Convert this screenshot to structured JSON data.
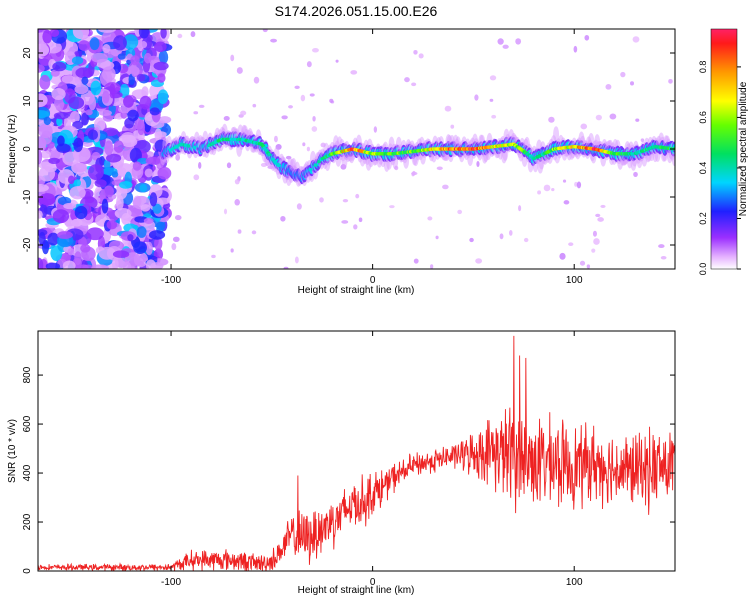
{
  "title": "S174.2026.051.15.00.E26",
  "colors": {
    "snr_line": "#ee2222",
    "axis": "#000000",
    "background": "#ffffff"
  },
  "chart_data": [
    {
      "type": "heatmap",
      "title": "S174.2026.051.15.00.E26",
      "xlabel": "Height of straight line (km)",
      "ylabel": "Frequency (Hz)",
      "xlim": [
        -166,
        150
      ],
      "ylim": [
        -25,
        25
      ],
      "xticks": [
        -100,
        0,
        100
      ],
      "xtick_labels": [
        "-100",
        "0",
        "100"
      ],
      "yticks": [
        -20,
        -10,
        0,
        10,
        20
      ],
      "ytick_labels": [
        "-20",
        "-10",
        "0",
        "10",
        "20"
      ],
      "colorbar": {
        "label": "Normalized spectral amplitude",
        "range": [
          0.0,
          0.95
        ],
        "ticks": [
          0.0,
          0.2,
          0.4,
          0.6,
          0.8
        ],
        "tick_labels": [
          "0.0",
          "0.2",
          "0.4",
          "0.6",
          "0.8"
        ],
        "colormap": "rainbow (white-magenta-purple-blue-cyan-green-yellow-orange-red)"
      },
      "signal_trace": {
        "x": [
          -104,
          -95,
          -85,
          -75,
          -65,
          -55,
          -48,
          -40,
          -35,
          -30,
          -25,
          -20,
          -10,
          0,
          10,
          20,
          30,
          40,
          50,
          60,
          70,
          80,
          90,
          100,
          110,
          120,
          130,
          140,
          150
        ],
        "y": [
          -1,
          1,
          0,
          2,
          2,
          1,
          -3,
          -5,
          -6,
          -4,
          -2,
          -1,
          0,
          -1,
          -1,
          -0.5,
          0,
          0,
          0,
          0.5,
          1,
          -2,
          0,
          0.5,
          0,
          -1,
          -1,
          0.5,
          0
        ],
        "peak_amplitude": [
          0.3,
          0.4,
          0.35,
          0.45,
          0.4,
          0.45,
          0.35,
          0.3,
          0.3,
          0.35,
          0.4,
          0.55,
          0.9,
          0.6,
          0.55,
          0.6,
          0.7,
          0.9,
          0.9,
          0.7,
          0.7,
          0.4,
          0.6,
          0.75,
          0.9,
          0.6,
          0.4,
          0.5,
          0.5
        ]
      },
      "noise_region": {
        "x_range": [
          -166,
          -103
        ],
        "amplitude": [
          0.05,
          0.35
        ]
      }
    },
    {
      "type": "line",
      "xlabel": "Height of straight line (km)",
      "ylabel": "SNR (10 * v/v)",
      "xlim": [
        -166,
        150
      ],
      "ylim": [
        0,
        980
      ],
      "xticks": [
        -100,
        0,
        100
      ],
      "xtick_labels": [
        "-100",
        "0",
        "100"
      ],
      "yticks": [
        0,
        200,
        400,
        600,
        800
      ],
      "ytick_labels": [
        "0",
        "200",
        "400",
        "600",
        "800"
      ],
      "series": [
        {
          "name": "SNR",
          "envelope_x": [
            -166,
            -100,
            -95,
            -90,
            -80,
            -70,
            -60,
            -55,
            -50,
            -45,
            -40,
            -35,
            -30,
            -25,
            -20,
            -15,
            -10,
            -5,
            0,
            5,
            10,
            20,
            30,
            40,
            50,
            60,
            70,
            80,
            90,
            100,
            110,
            120,
            130,
            140,
            150
          ],
          "baseline": [
            15,
            15,
            30,
            45,
            45,
            45,
            35,
            30,
            40,
            90,
            150,
            130,
            150,
            170,
            210,
            230,
            280,
            280,
            320,
            340,
            380,
            430,
            450,
            470,
            480,
            490,
            470,
            450,
            440,
            430,
            440,
            420,
            410,
            420,
            430
          ],
          "spread": [
            12,
            15,
            30,
            40,
            45,
            45,
            40,
            40,
            45,
            60,
            90,
            110,
            120,
            120,
            110,
            110,
            100,
            110,
            90,
            80,
            60,
            50,
            50,
            50,
            90,
            150,
            220,
            190,
            180,
            170,
            160,
            150,
            150,
            170,
            150
          ],
          "notable_peaks": [
            {
              "x": 70,
              "y": 960
            },
            {
              "x": 73,
              "y": 880
            },
            {
              "x": 76,
              "y": 870
            },
            {
              "x": -37,
              "y": 390
            }
          ]
        }
      ]
    }
  ]
}
